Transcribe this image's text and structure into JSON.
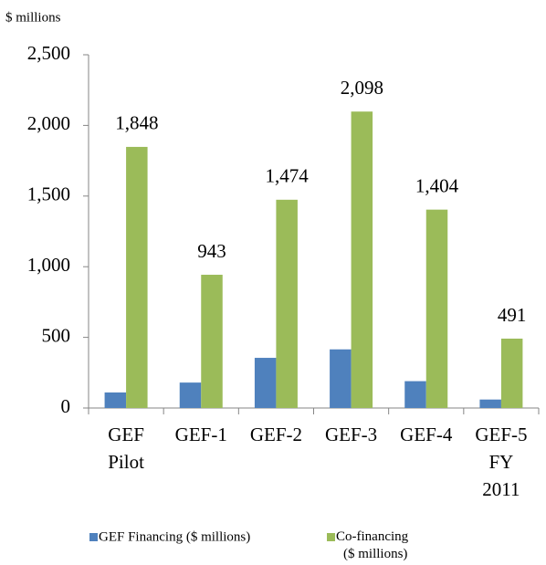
{
  "chart_data": {
    "type": "bar",
    "y_label": "$ millions",
    "categories": [
      "GEF Pilot",
      "GEF-1",
      "GEF-2",
      "GEF-3",
      "GEF-4",
      "GEF-5 FY 2011"
    ],
    "series": [
      {
        "name": "GEF Financing ($ millions)",
        "color": "#4f81bd",
        "values": [
          110,
          180,
          355,
          415,
          190,
          60
        ]
      },
      {
        "name": "Co-financing ($ millions)",
        "color": "#9bbb59",
        "values": [
          1848,
          943,
          1474,
          2098,
          1404,
          491
        ],
        "value_labels": [
          "1,848",
          "943",
          "1,474",
          "2,098",
          "1,404",
          "491"
        ]
      }
    ],
    "ylim": [
      0,
      2500
    ],
    "yticks": [
      0,
      500,
      {
        "value": 1000,
        "label": "1,000"
      },
      {
        "value": 1500,
        "label": "1,500"
      },
      {
        "value": 2000,
        "label": "2,000"
      },
      {
        "value": 2500,
        "label": "2,500"
      }
    ],
    "legend": "bottom"
  }
}
